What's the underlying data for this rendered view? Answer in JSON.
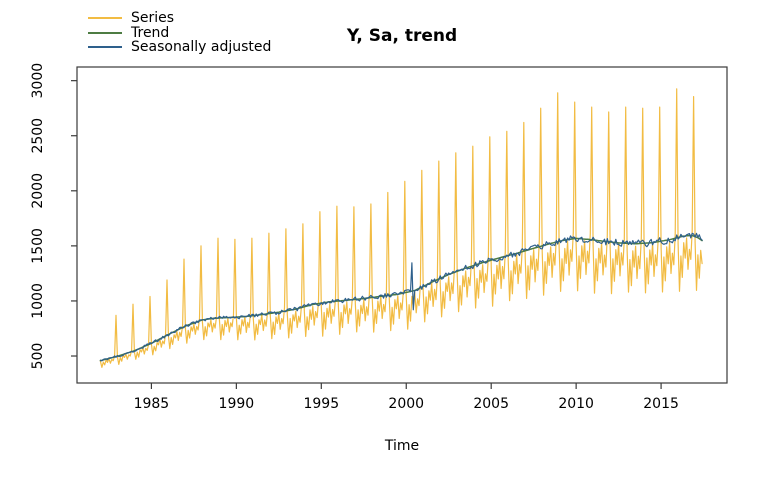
{
  "figure": {
    "title": "Y, Sa, trend",
    "x_axis_label": "Time"
  },
  "legend": {
    "position": "topleft",
    "items": [
      {
        "label": "Series",
        "color": "#F2BC43"
      },
      {
        "label": "Trend",
        "color": "#4D7C43"
      },
      {
        "label": "Seasonally adjusted",
        "color": "#2E608C"
      }
    ]
  },
  "chart_data": {
    "type": "line",
    "title": "Y, Sa, trend",
    "xlabel": "Time",
    "ylabel": "",
    "grid": false,
    "legend_position": "topleft",
    "x_ticks": [
      1985,
      1990,
      1995,
      2000,
      2005,
      2010,
      2015
    ],
    "y_ticks": [
      500,
      1000,
      1500,
      2000,
      2500,
      3000
    ],
    "xlim": [
      1980.62,
      2018.88
    ],
    "ylim": [
      255,
      3124
    ],
    "frequency": "monthly",
    "time_start": 1982.0,
    "time_end": 2017.417,
    "axis_color": "#3A3A3A",
    "text_color": "#000000",
    "background_color": "#FFFFFF",
    "series": [
      {
        "name": "Series",
        "role": "raw_series",
        "color": "#F2BC43",
        "width": 1.2
      },
      {
        "name": "Trend",
        "role": "trend",
        "color": "#4D7C43",
        "width": 1.5
      },
      {
        "name": "Seasonally adjusted",
        "role": "seasonally_adjusted",
        "color": "#2E608C",
        "width": 1.2
      }
    ],
    "trend_knots": [
      [
        1982.0,
        458
      ],
      [
        1983.0,
        498
      ],
      [
        1984.0,
        548
      ],
      [
        1985.0,
        615
      ],
      [
        1986.0,
        695
      ],
      [
        1987.0,
        772
      ],
      [
        1988.0,
        828
      ],
      [
        1988.7,
        843
      ],
      [
        1989.5,
        849
      ],
      [
        1990.5,
        858
      ],
      [
        1991.5,
        876
      ],
      [
        1992.5,
        898
      ],
      [
        1993.5,
        926
      ],
      [
        1994.5,
        968
      ],
      [
        1995.5,
        993
      ],
      [
        1996.5,
        1006
      ],
      [
        1997.5,
        1022
      ],
      [
        1998.5,
        1042
      ],
      [
        1999.5,
        1060
      ],
      [
        2000.5,
        1095
      ],
      [
        2001.5,
        1170
      ],
      [
        2002.5,
        1240
      ],
      [
        2003.5,
        1298
      ],
      [
        2004.5,
        1348
      ],
      [
        2005.5,
        1392
      ],
      [
        2006.5,
        1432
      ],
      [
        2007.5,
        1478
      ],
      [
        2008.5,
        1522
      ],
      [
        2009.3,
        1552
      ],
      [
        2010.0,
        1568
      ],
      [
        2010.8,
        1558
      ],
      [
        2011.5,
        1544
      ],
      [
        2012.5,
        1527
      ],
      [
        2013.5,
        1519
      ],
      [
        2014.5,
        1529
      ],
      [
        2015.5,
        1556
      ],
      [
        2016.3,
        1588
      ],
      [
        2016.8,
        1596
      ],
      [
        2017.2,
        1572
      ],
      [
        2017.417,
        1548
      ]
    ],
    "december_peaks": [
      [
        1982,
        870
      ],
      [
        1983,
        970
      ],
      [
        1984,
        1040
      ],
      [
        1985,
        1190
      ],
      [
        1986,
        1380
      ],
      [
        1987,
        1500
      ],
      [
        1988,
        1570
      ],
      [
        1989,
        1560
      ],
      [
        1990,
        1570
      ],
      [
        1991,
        1615
      ],
      [
        1992,
        1655
      ],
      [
        1993,
        1700
      ],
      [
        1994,
        1810
      ],
      [
        1995,
        1860
      ],
      [
        1996,
        1855
      ],
      [
        1997,
        1880
      ],
      [
        1998,
        1985
      ],
      [
        1999,
        2085
      ],
      [
        2000,
        2185
      ],
      [
        2001,
        2270
      ],
      [
        2002,
        2345
      ],
      [
        2003,
        2405
      ],
      [
        2004,
        2490
      ],
      [
        2005,
        2540
      ],
      [
        2006,
        2620
      ],
      [
        2007,
        2750
      ],
      [
        2008,
        2890
      ],
      [
        2009,
        2805
      ],
      [
        2010,
        2760
      ],
      [
        2011,
        2715
      ],
      [
        2012,
        2760
      ],
      [
        2013,
        2750
      ],
      [
        2014,
        2760
      ],
      [
        2015,
        2925
      ],
      [
        2016,
        2855
      ]
    ],
    "seasonal_factors": [
      0.97,
      0.7,
      0.9,
      0.76,
      0.95,
      0.87,
      0.99,
      0.8,
      0.93,
      0.86,
      1.03,
      null
    ],
    "seasonality_ramp": {
      "base_strength": 0.45,
      "full_strength_after_years": 13
    },
    "series_noise": {
      "base_amplitude": 5,
      "growth_amplitude": 16
    },
    "sa_noise": {
      "base_amplitude": 10,
      "growth_amplitude": 26
    },
    "sa_anomaly": {
      "year": 2000,
      "month_up": 5,
      "value_up": 1345,
      "month_down": 6,
      "value_down": 920
    }
  }
}
